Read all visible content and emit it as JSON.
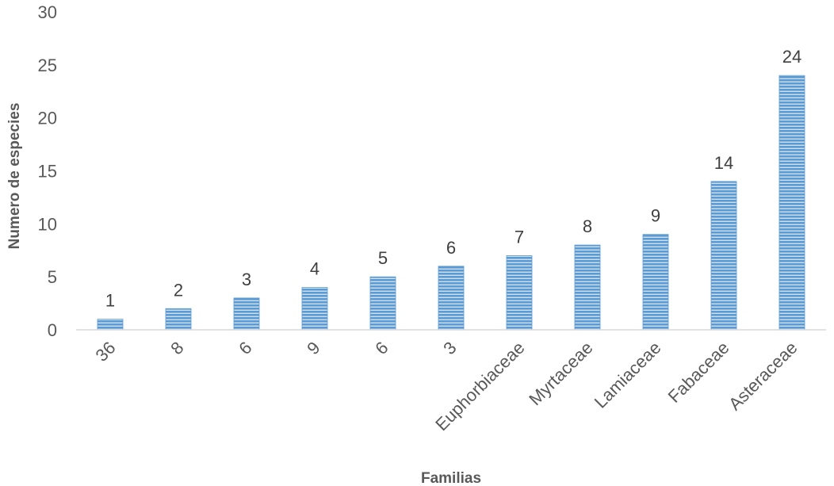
{
  "chart_data": {
    "type": "bar",
    "xlabel": "Familias",
    "ylabel": "Numero de especies",
    "ylim": [
      0,
      30
    ],
    "yticks": [
      0,
      5,
      10,
      15,
      20,
      25,
      30
    ],
    "categories": [
      "36",
      "8",
      "6",
      "9",
      "6",
      "3",
      "Euphorbiaceae",
      "Myrtaceae",
      "Lamiaceae",
      "Fabaceae",
      "Asteraceae"
    ],
    "values": [
      1,
      2,
      3,
      4,
      5,
      6,
      7,
      8,
      9,
      14,
      24
    ],
    "data_labels": [
      "1",
      "2",
      "3",
      "4",
      "5",
      "6",
      "7",
      "8",
      "9",
      "14",
      "24"
    ],
    "bar_color": "#5b9bd5",
    "bar_stripe_color": "#ffffff",
    "grid": false,
    "legend": "none"
  }
}
